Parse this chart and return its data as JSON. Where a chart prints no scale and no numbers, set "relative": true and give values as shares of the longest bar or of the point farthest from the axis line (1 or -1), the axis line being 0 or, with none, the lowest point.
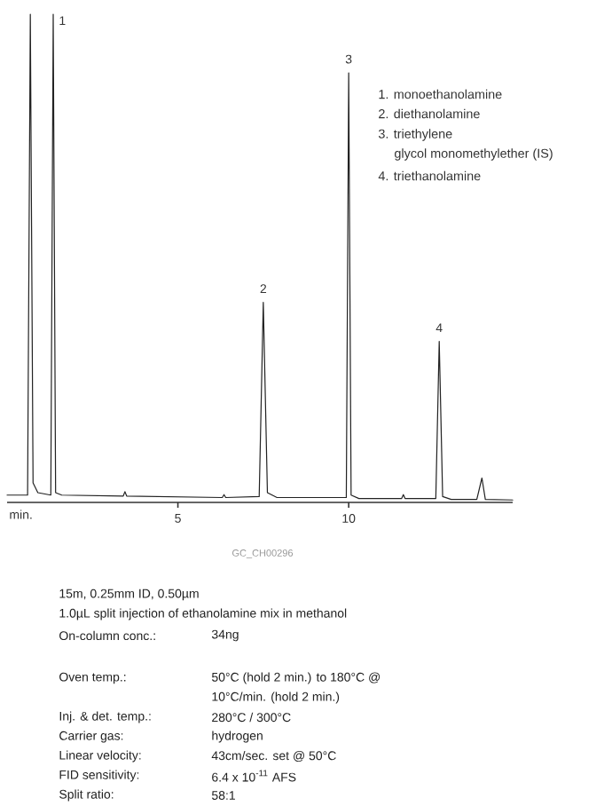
{
  "chart_data": {
    "type": "line",
    "relative": true,
    "color": "#222222",
    "line_style": "solid",
    "marker": "none",
    "xlabel": "min.",
    "xlim": [
      0,
      14.8
    ],
    "xticks": [
      5,
      10
    ],
    "tick_labels": "x",
    "x": [
      0,
      0.6,
      0.68,
      0.76,
      0.9,
      1.28,
      1.35,
      1.42,
      1.6,
      3.4,
      3.45,
      3.5,
      6.3,
      6.35,
      6.4,
      7.38,
      7.5,
      7.62,
      7.9,
      9.93,
      10.0,
      10.07,
      10.3,
      11.55,
      11.6,
      11.65,
      12.55,
      12.65,
      12.75,
      13.0,
      13.75,
      13.9,
      14.0,
      14.8
    ],
    "values": [
      0.015,
      0.015,
      1,
      0.04,
      0.02,
      0.015,
      1,
      0.02,
      0.015,
      0.013,
      0.022,
      0.013,
      0.01,
      0.016,
      0.01,
      0.012,
      0.41,
      0.02,
      0.01,
      0.01,
      0.88,
      0.015,
      0.008,
      0.008,
      0.016,
      0.008,
      0.008,
      0.33,
      0.012,
      0.006,
      0.006,
      0.05,
      0.006,
      0.005
    ],
    "annotations": [
      "1. monoethanolamine",
      "2. diethanolamine",
      "3. triethylene",
      "glycol monomethylether (IS)",
      "4. triethanolamine",
      "GC_CH00296",
      "15m, 0.25mm ID, 0.50µm",
      "1.0µL split injection of ethanolamine mix in methanol",
      "On-column conc.:",
      "34ng",
      "Oven temp.:",
      "50°C (hold 2 min.) to 180°C @",
      "10°C/min. (hold 2 min.)",
      "Inj. & det. temp.:",
      "280°C / 300°C",
      "Carrier gas:",
      "hydrogen",
      "Linear velocity:",
      "43cm/sec. set @ 50°C",
      "FID sensitivity:",
      "6.4 x 10$^{-11}$ AFS",
      "Split ratio:",
      "58:1",
      {
        "text": "1",
        "x": 1.35,
        "y": 1
      },
      {
        "text": "2",
        "x": 7.5,
        "y": 0.41
      },
      {
        "text": "3",
        "x": 10.0,
        "y": 0.88
      },
      {
        "text": "4",
        "x": 12.65,
        "y": 0.33
      }
    ]
  }
}
